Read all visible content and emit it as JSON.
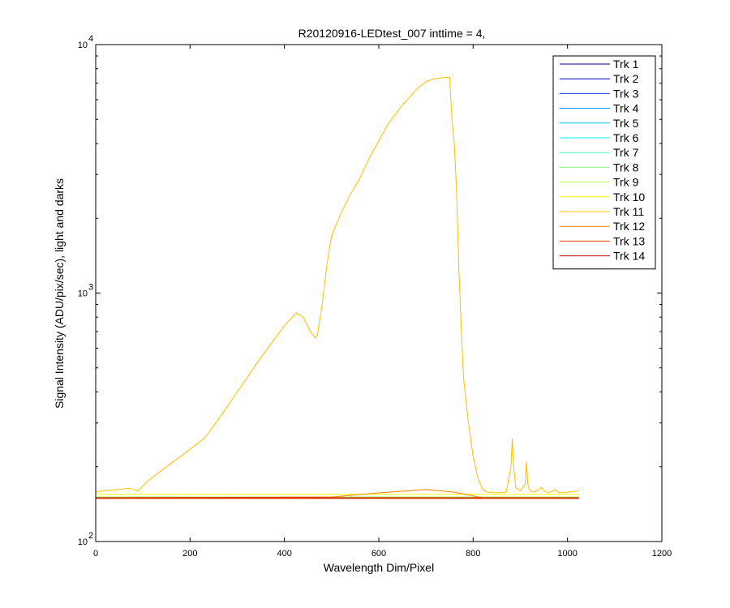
{
  "chart_data": {
    "type": "line",
    "title": "R20120916-LEDtest_007 inttime = 4,",
    "xlabel": "Wavelength Dim/Pixel",
    "ylabel": "Signal Intensity (ADU/pix/sec), light and darks",
    "xlim": [
      0,
      1200
    ],
    "ylim": [
      100,
      10000
    ],
    "yscale": "log",
    "grid": false,
    "legend_position": "top-right",
    "x_ticks": [
      {
        "value": 0,
        "label": "0"
      },
      {
        "value": 200,
        "label": "200"
      },
      {
        "value": 400,
        "label": "400"
      },
      {
        "value": 600,
        "label": "600"
      },
      {
        "value": 800,
        "label": "800"
      },
      {
        "value": 1000,
        "label": "1000"
      },
      {
        "value": 1200,
        "label": "1200"
      }
    ],
    "y_ticks": [
      {
        "value": 100,
        "base": "10",
        "exp": "2"
      },
      {
        "value": 1000,
        "base": "10",
        "exp": "3"
      },
      {
        "value": 10000,
        "base": "10",
        "exp": "4"
      }
    ],
    "series": [
      {
        "name": "Trk 1",
        "color": "#00008f",
        "x": [
          0,
          1024
        ],
        "y": [
          151,
          151
        ]
      },
      {
        "name": "Trk 2",
        "color": "#0000bf",
        "x": [
          0,
          1024
        ],
        "y": [
          150,
          150
        ]
      },
      {
        "name": "Trk 3",
        "color": "#0040ff",
        "x": [
          0,
          1024
        ],
        "y": [
          151,
          151
        ]
      },
      {
        "name": "Trk 4",
        "color": "#0080ff",
        "x": [
          0,
          1024
        ],
        "y": [
          150,
          150
        ]
      },
      {
        "name": "Trk 5",
        "color": "#00bfff",
        "x": [
          0,
          1024
        ],
        "y": [
          151,
          151
        ]
      },
      {
        "name": "Trk 6",
        "color": "#00ffff",
        "x": [
          0,
          1024
        ],
        "y": [
          150,
          150
        ]
      },
      {
        "name": "Trk 7",
        "color": "#40ffbf",
        "x": [
          0,
          1024
        ],
        "y": [
          151,
          151
        ]
      },
      {
        "name": "Trk 8",
        "color": "#80ff80",
        "x": [
          0,
          1024
        ],
        "y": [
          150,
          150
        ]
      },
      {
        "name": "Trk 9",
        "color": "#bfff40",
        "x": [
          0,
          1024
        ],
        "y": [
          151,
          151
        ]
      },
      {
        "name": "Trk 10",
        "color": "#ffff00",
        "x": [
          0,
          1024
        ],
        "y": [
          155,
          155
        ]
      },
      {
        "name": "Trk 11",
        "color": "#ffbf00",
        "x": [
          0,
          20,
          50,
          70,
          90,
          110,
          150,
          200,
          230,
          260,
          300,
          350,
          400,
          425,
          440,
          455,
          465,
          470,
          480,
          490,
          500,
          520,
          540,
          560,
          580,
          600,
          620,
          650,
          680,
          700,
          720,
          750,
          755,
          760,
          765,
          770,
          775,
          780,
          790,
          800,
          810,
          820,
          830,
          850,
          870,
          880,
          883,
          886,
          890,
          900,
          910,
          913,
          916,
          920,
          930,
          945,
          950,
          960,
          975,
          980,
          990,
          1000,
          1024
        ],
        "y": [
          158,
          160,
          162,
          164,
          160,
          175,
          200,
          235,
          260,
          310,
          400,
          550,
          740,
          830,
          800,
          700,
          660,
          680,
          900,
          1300,
          1700,
          2100,
          2500,
          2900,
          3500,
          4100,
          4800,
          5700,
          6600,
          7100,
          7300,
          7400,
          5000,
          4000,
          2500,
          1200,
          700,
          450,
          300,
          220,
          180,
          162,
          158,
          157,
          158,
          200,
          260,
          200,
          165,
          160,
          170,
          210,
          170,
          160,
          158,
          165,
          160,
          157,
          162,
          158,
          157,
          158,
          160
        ]
      },
      {
        "name": "Trk 12",
        "color": "#ff8000",
        "x": [
          0,
          500,
          600,
          700,
          760,
          820,
          1024
        ],
        "y": [
          150,
          151,
          157,
          162,
          158,
          150,
          150
        ]
      },
      {
        "name": "Trk 13",
        "color": "#ff4000",
        "x": [
          0,
          1024
        ],
        "y": [
          149,
          149
        ]
      },
      {
        "name": "Trk 14",
        "color": "#bf0000",
        "x": [
          0,
          1024
        ],
        "y": [
          150,
          150
        ]
      }
    ]
  }
}
